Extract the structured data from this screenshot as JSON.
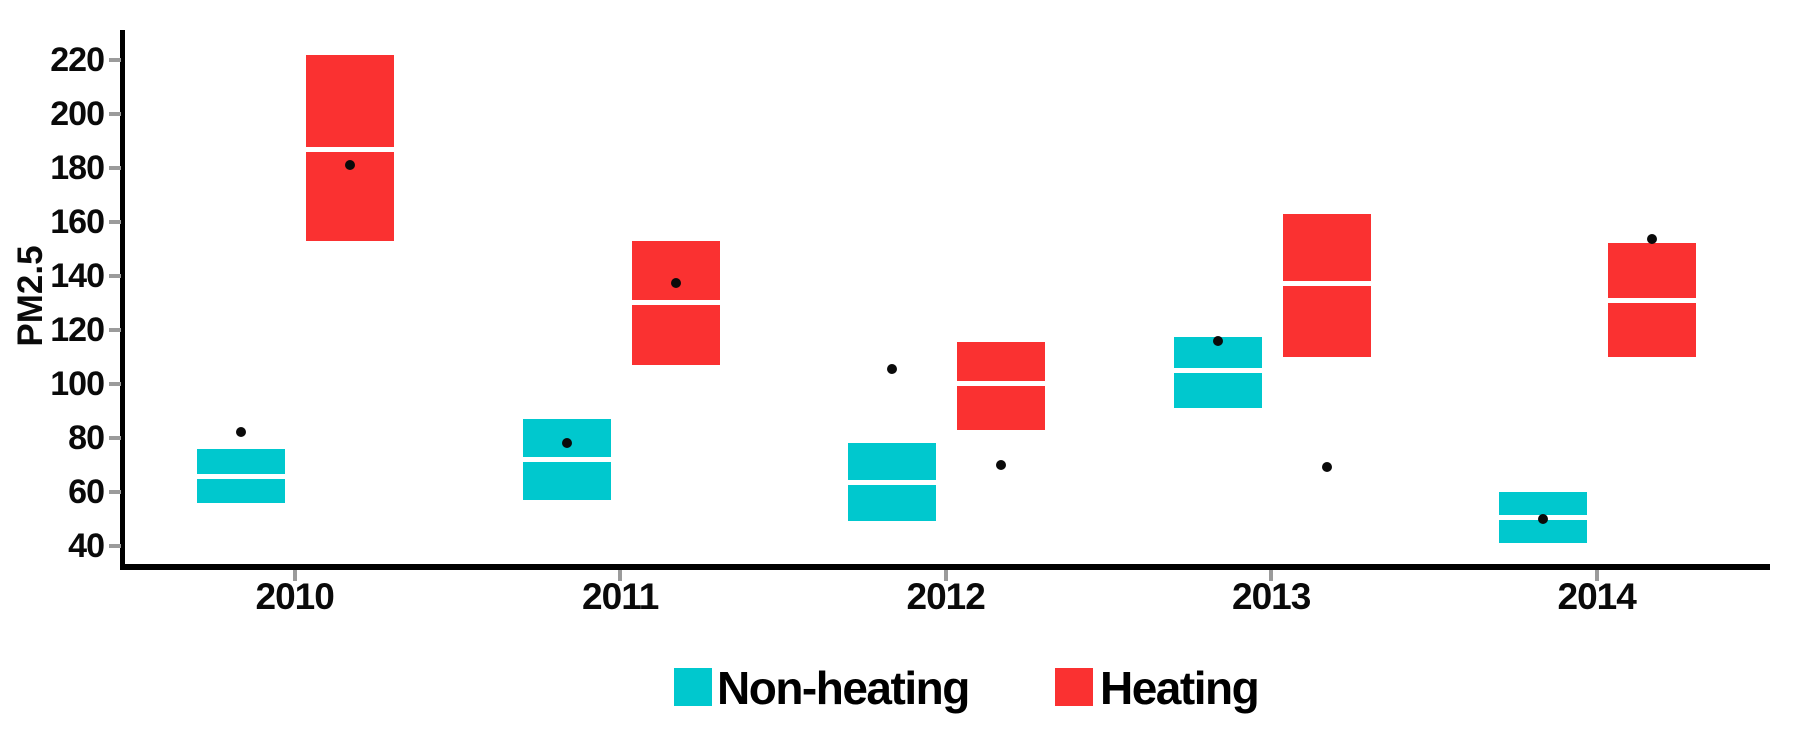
{
  "chart_data": {
    "type": "crossbar-box",
    "title": "",
    "ylabel": "PM2.5",
    "xlabel": "",
    "categories": [
      "2010",
      "2011",
      "2012",
      "2013",
      "2014"
    ],
    "y_ticks": [
      220,
      200,
      180,
      160,
      140,
      120,
      100,
      80,
      60,
      40
    ],
    "ylim": [
      35,
      230
    ],
    "grid": "off",
    "legend_position": "bottom",
    "series": [
      {
        "name": "Non-heating",
        "color": "#00c8ce",
        "boxes": [
          {
            "year": "2010",
            "low": 56,
            "mid": 65.5,
            "high": 76,
            "point": 82
          },
          {
            "year": "2011",
            "low": 57,
            "mid": 72,
            "high": 87,
            "point": 78
          },
          {
            "year": "2012",
            "low": 49,
            "mid": 63.5,
            "high": 78,
            "point": 105.5
          },
          {
            "year": "2013",
            "low": 91,
            "mid": 105,
            "high": 117.5,
            "point": 116
          },
          {
            "year": "2014",
            "low": 41,
            "mid": 50.5,
            "high": 60,
            "point": 50
          }
        ]
      },
      {
        "name": "Heating",
        "color": "#fa3131",
        "boxes": [
          {
            "year": "2010",
            "low": 153,
            "mid": 187,
            "high": 222,
            "point": 181
          },
          {
            "year": "2011",
            "low": 107,
            "mid": 130,
            "high": 153,
            "point": 137.5
          },
          {
            "year": "2012",
            "low": 83,
            "mid": 100,
            "high": 115.5,
            "point": 70
          },
          {
            "year": "2013",
            "low": 110,
            "mid": 137,
            "high": 163,
            "point": 69
          },
          {
            "year": "2014",
            "low": 110,
            "mid": 131,
            "high": 152,
            "point": 153.5
          }
        ]
      }
    ],
    "point_color": "#0a0a0a",
    "axis_color": "#000000",
    "tick_color": "#9b9b9b"
  }
}
